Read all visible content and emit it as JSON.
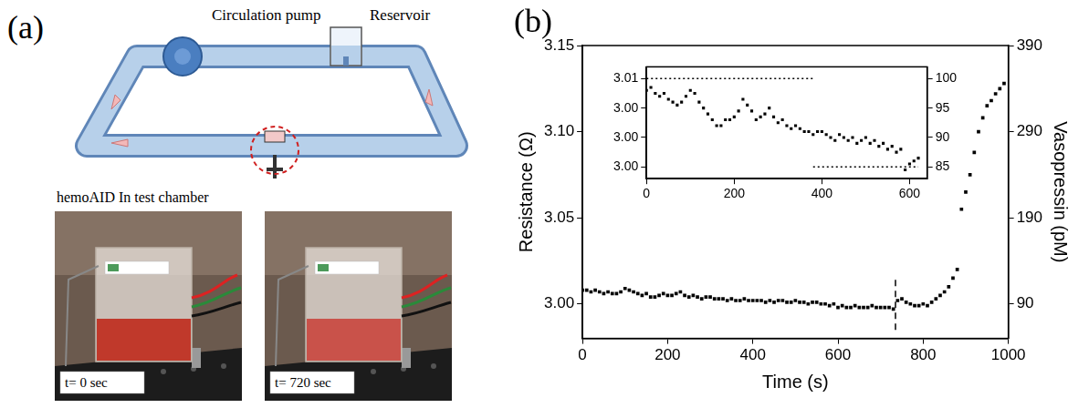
{
  "panel_a": {
    "label": "(a)",
    "diagram": {
      "pump": "Circulation pump",
      "reservoir": "Reservoir"
    },
    "photos": {
      "caption": "hemoAID In test chamber",
      "frames": [
        "t= 0 sec",
        "t= 720 sec"
      ]
    }
  },
  "panel_b": {
    "label": "(b)"
  },
  "chart_data": [
    {
      "type": "scatter",
      "x_label": "Time (s)",
      "y_label": "Resistance (Ω)",
      "y2_label": "Vasopressin (pM)",
      "xlim": [
        0,
        1000
      ],
      "xticks": [
        0,
        200,
        400,
        600,
        800,
        1000
      ],
      "ylim": [
        2.98,
        3.15
      ],
      "yticks": [
        {
          "value": 3,
          "label": "3.00"
        },
        3.05,
        {
          "value": 3.1,
          "label": "3.10"
        },
        3.15
      ],
      "y2lim": [
        50,
        390
      ],
      "y2ticks": [
        90,
        190,
        290,
        390
      ],
      "grid": false,
      "x": [
        0,
        10,
        20,
        30,
        40,
        50,
        60,
        70,
        80,
        90,
        100,
        110,
        120,
        130,
        140,
        150,
        160,
        170,
        180,
        190,
        200,
        210,
        220,
        230,
        240,
        250,
        260,
        270,
        280,
        290,
        300,
        310,
        320,
        330,
        340,
        350,
        360,
        370,
        380,
        390,
        400,
        410,
        420,
        430,
        440,
        450,
        460,
        470,
        480,
        490,
        500,
        510,
        520,
        530,
        540,
        550,
        560,
        570,
        580,
        590,
        600,
        610,
        620,
        630,
        640,
        650,
        660,
        670,
        680,
        690,
        700,
        710,
        720,
        730,
        740,
        750,
        760,
        770,
        780,
        790,
        800,
        810,
        820,
        830,
        840,
        850,
        860,
        870,
        880,
        890,
        900,
        910,
        920,
        930,
        940,
        950,
        960,
        970,
        980,
        990
      ],
      "series": [
        {
          "axis": "y",
          "color": "#000000",
          "marker": "square",
          "values": [
            3.008,
            3.008,
            3.007,
            3.008,
            3.007,
            3.006,
            3.007,
            3.006,
            3.006,
            3.007,
            3.009,
            3.008,
            3.007,
            3.006,
            3.005,
            3.006,
            3.004,
            3.004,
            3.005,
            3.006,
            3.005,
            3.005,
            3.006,
            3.007,
            3.005,
            3.004,
            3.005,
            3.004,
            3.003,
            3.004,
            3.004,
            3.003,
            3.003,
            3.003,
            3.002,
            3.003,
            3.002,
            3.002,
            3.003,
            3.002,
            3.002,
            3.002,
            3.002,
            3.001,
            3.002,
            3.001,
            3.002,
            3.002,
            3.001,
            3.001,
            3.002,
            3.001,
            3.001,
            3.0,
            3.001,
            3.001,
            3.0,
            3.0,
            2.999,
            3.0,
            2.998,
            2.999,
            2.998,
            2.998,
            2.999,
            2.998,
            2.998,
            2.998,
            2.999,
            2.998,
            2.998,
            2.998,
            2.998,
            2.997,
            3.002,
            3.003,
            3.001,
            3.0,
            2.999,
            2.999,
            3.0,
            2.999,
            3.001,
            3.003,
            3.005,
            3.007,
            3.01,
            3.015,
            3.02,
            3.055,
            3.065,
            3.075,
            3.088,
            3.1,
            3.108,
            3.115,
            3.118,
            3.122,
            3.125,
            3.128
          ]
        }
      ],
      "annotations": [
        {
          "type": "line",
          "axis": "y",
          "x": [
            735,
            735
          ],
          "y": [
            2.985,
            3.015
          ],
          "line_style": "dashed",
          "color": "#000000"
        }
      ]
    },
    {
      "type": "scatter",
      "xlim": [
        0,
        640
      ],
      "xticks": [
        0,
        200,
        400,
        600
      ],
      "ylim": [
        2.9965,
        3.006
      ],
      "yticks": [
        {
          "value": 3.005,
          "label": "3.01"
        },
        {
          "value": 3.0025,
          "label": "3.00"
        },
        {
          "value": 3,
          "label": "3.00"
        },
        {
          "value": 2.9975,
          "label": "3.00"
        }
      ],
      "y2lim": [
        83,
        102
      ],
      "y2ticks": [
        85,
        90,
        95,
        100
      ],
      "grid": false,
      "x": [
        0,
        10,
        20,
        30,
        40,
        50,
        60,
        70,
        80,
        90,
        100,
        110,
        120,
        130,
        140,
        150,
        160,
        170,
        180,
        190,
        200,
        210,
        220,
        230,
        240,
        250,
        260,
        270,
        280,
        290,
        300,
        310,
        320,
        330,
        340,
        350,
        360,
        370,
        380,
        390,
        400,
        410,
        420,
        430,
        440,
        450,
        460,
        470,
        480,
        490,
        500,
        510,
        520,
        530,
        540,
        550,
        560,
        570,
        580,
        590,
        600,
        610,
        620
      ],
      "series": [
        {
          "axis": "y2",
          "color": "#000000",
          "marker": "square",
          "values": [
            98,
            98.5,
            97.5,
            97,
            97.5,
            96.5,
            96,
            95.5,
            96,
            97,
            98,
            97.5,
            96,
            95,
            94,
            93,
            92,
            92,
            93,
            93,
            93.5,
            94.5,
            96.5,
            95.5,
            94.5,
            93,
            93.5,
            94,
            95,
            93.5,
            92.5,
            93,
            92,
            91.5,
            92,
            91.5,
            91,
            91,
            90.5,
            91,
            91,
            90.5,
            90,
            89.5,
            90.5,
            90,
            89.5,
            90,
            89,
            89.5,
            90,
            89,
            89.5,
            88.5,
            89,
            88,
            88.5,
            87.5,
            88,
            84.5,
            85.5,
            86,
            86.5
          ]
        }
      ],
      "annotations": [
        {
          "type": "line",
          "axis": "y2",
          "x": [
            0,
            380
          ],
          "y": [
            100,
            100
          ],
          "line_style": "dotted",
          "color": "#000000"
        },
        {
          "type": "line",
          "axis": "y2",
          "x": [
            380,
            620
          ],
          "y": [
            85,
            85
          ],
          "line_style": "dotted",
          "color": "#000000"
        }
      ]
    }
  ]
}
